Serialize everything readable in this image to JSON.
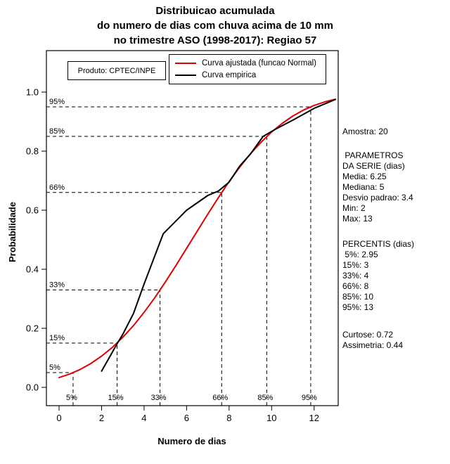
{
  "header": {
    "line1": "Distribuicao acumulada",
    "line2": "do numero de dias com chuva acima de 10 mm",
    "line3": "no trimestre ASO (1998-2017): Regiao 57"
  },
  "legend": {
    "produto": "Produto: CPTEC/INPE",
    "items": [
      {
        "label": "Curva ajustada (funcao Normal)",
        "color": "#e00000"
      },
      {
        "label": "Curva empirica",
        "color": "#000000"
      }
    ]
  },
  "right_panel": {
    "amostra": "Amostra: 20",
    "params_title_1": " PARAMETROS",
    "params_title_2": "DA SERIE (dias)",
    "media": "Media: 6.25",
    "mediana": "Mediana: 5",
    "desvio": "Desvio padrao: 3.4",
    "min": "Min: 2",
    "max": "Max: 13",
    "percentis_title": "PERCENTIS (dias)",
    "p5": " 5%: 2.95",
    "p15": "15%: 3",
    "p33": "33%: 4",
    "p66": "66%: 8",
    "p85": "85%: 10",
    "p95": "95%: 13",
    "curtose": "Curtose: 0.72",
    "assimetria": "Assimetria: 0.44"
  },
  "chart_data": {
    "type": "line",
    "title": "Distribuicao acumulada do numero de dias com chuva acima de 10 mm no trimestre ASO (1998-2017): Regiao 57",
    "xlabel": "Numero de dias",
    "ylabel": "Probabilidade",
    "xlim": [
      0,
      13
    ],
    "ylim": [
      0,
      1.0
    ],
    "x_ticks": [
      0,
      2,
      4,
      6,
      8,
      10,
      12
    ],
    "y_ticks": [
      "0.0",
      "0.2",
      "0.4",
      "0.6",
      "0.8",
      "1.0"
    ],
    "grid": false,
    "legend_position": "top-center",
    "series": [
      {
        "name": "Curva ajustada (funcao Normal)",
        "color": "#e00000",
        "x": [
          0,
          0.5,
          1,
          1.5,
          2,
          2.5,
          3,
          3.5,
          4,
          4.5,
          5,
          5.5,
          6,
          6.5,
          7,
          7.5,
          8,
          8.5,
          9,
          9.5,
          10,
          10.5,
          11,
          11.5,
          12,
          12.5,
          13
        ],
        "y": [
          0.033,
          0.045,
          0.061,
          0.081,
          0.106,
          0.135,
          0.17,
          0.209,
          0.254,
          0.303,
          0.357,
          0.413,
          0.471,
          0.529,
          0.587,
          0.643,
          0.697,
          0.746,
          0.791,
          0.83,
          0.865,
          0.894,
          0.919,
          0.939,
          0.955,
          0.967,
          0.976
        ]
      },
      {
        "name": "Curva empirica",
        "color": "#000000",
        "x": [
          2,
          2.75,
          3,
          3.5,
          4,
          4.9,
          6,
          7,
          7.5,
          8,
          8.5,
          9,
          9.6,
          10.2,
          11,
          12,
          13
        ],
        "y": [
          0.055,
          0.15,
          0.18,
          0.25,
          0.35,
          0.52,
          0.6,
          0.65,
          0.665,
          0.695,
          0.75,
          0.79,
          0.85,
          0.875,
          0.905,
          0.945,
          0.975
        ]
      }
    ],
    "percentile_guides": [
      {
        "label": "5%",
        "p": 0.05,
        "x": 0.66
      },
      {
        "label": "15%",
        "p": 0.15,
        "x": 2.73
      },
      {
        "label": "33%",
        "p": 0.33,
        "x": 4.75
      },
      {
        "label": "66%",
        "p": 0.66,
        "x": 7.65
      },
      {
        "label": "85%",
        "p": 0.85,
        "x": 9.77
      },
      {
        "label": "95%",
        "p": 0.95,
        "x": 11.84
      }
    ],
    "normal_params": {
      "mean": 6.25,
      "sd": 3.4
    },
    "stats": {
      "amostra": 20,
      "media": 6.25,
      "mediana": 5,
      "desvio_padrao": 3.4,
      "min": 2,
      "max": 13,
      "percentis": {
        "5%": 2.95,
        "15%": 3,
        "33%": 4,
        "66%": 8,
        "85%": 10,
        "95%": 13
      },
      "curtose": 0.72,
      "assimetria": 0.44
    }
  }
}
